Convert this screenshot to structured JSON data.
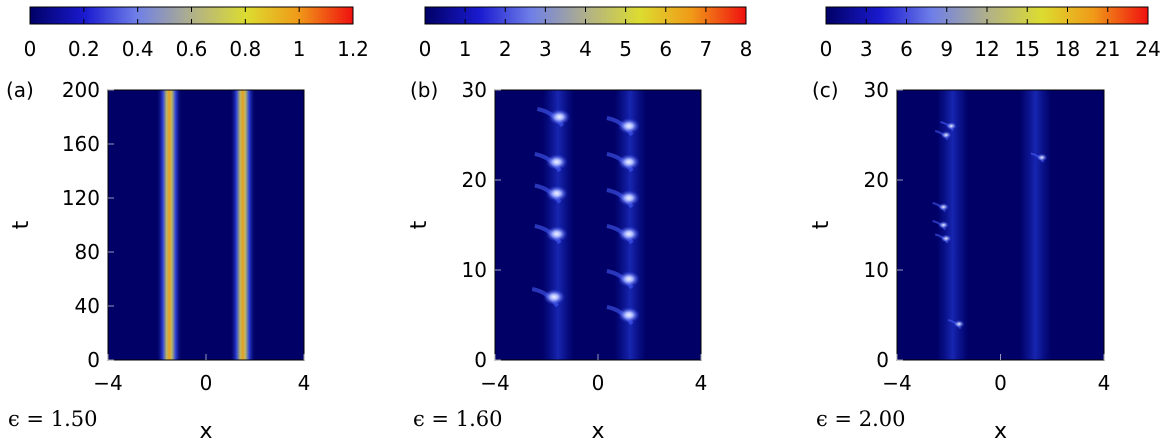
{
  "chart_data": [
    {
      "type": "heatmap",
      "panel_label": "(a)",
      "xlabel": "x",
      "ylabel": "t",
      "xlim": [
        -4,
        4
      ],
      "ylim": [
        0,
        200
      ],
      "xticks": [
        "−4",
        "0",
        "4"
      ],
      "yticks": [
        "0",
        "40",
        "80",
        "120",
        "160",
        "200"
      ],
      "colorbar": {
        "range": [
          0,
          1.2
        ],
        "ticks": [
          "0",
          "0.2",
          "0.4",
          "0.6",
          "0.8",
          "1",
          "1.2"
        ]
      },
      "annotation": "ϵ = 1.50",
      "features": [
        {
          "x": -1.5,
          "t_range": [
            0,
            200
          ],
          "peak_value": 1.0
        },
        {
          "x": 1.5,
          "t_range": [
            0,
            200
          ],
          "peak_value": 1.0
        }
      ]
    },
    {
      "type": "heatmap",
      "panel_label": "(b)",
      "xlabel": "x",
      "ylabel": "t",
      "xlim": [
        -4,
        4
      ],
      "ylim": [
        0,
        30
      ],
      "xticks": [
        "−4",
        "0",
        "4"
      ],
      "yticks": [
        "0",
        "10",
        "20",
        "30"
      ],
      "colorbar": {
        "range": [
          0,
          8
        ],
        "ticks": [
          "0",
          "1",
          "2",
          "3",
          "4",
          "5",
          "6",
          "7",
          "8"
        ]
      },
      "annotation": "ϵ = 1.60",
      "features": [
        {
          "x": -1.5,
          "t": 27,
          "value": 3.5
        },
        {
          "x": -1.6,
          "t": 22,
          "value": 3.5
        },
        {
          "x": -1.6,
          "t": 18.5,
          "value": 4
        },
        {
          "x": -1.6,
          "t": 14,
          "value": 6
        },
        {
          "x": -1.7,
          "t": 7,
          "value": 4
        },
        {
          "x": 1.2,
          "t": 26,
          "value": 3.5
        },
        {
          "x": 1.2,
          "t": 22,
          "value": 4
        },
        {
          "x": 1.2,
          "t": 18,
          "value": 4
        },
        {
          "x": 1.2,
          "t": 14,
          "value": 3.5
        },
        {
          "x": 1.2,
          "t": 9,
          "value": 3.5
        },
        {
          "x": 1.2,
          "t": 5,
          "value": 4
        }
      ]
    },
    {
      "type": "heatmap",
      "panel_label": "(c)",
      "xlabel": "x",
      "ylabel": "t",
      "xlim": [
        -4,
        4
      ],
      "ylim": [
        0,
        30
      ],
      "xticks": [
        "−4",
        "0",
        "4"
      ],
      "yticks": [
        "0",
        "10",
        "20",
        "30"
      ],
      "colorbar": {
        "range": [
          0,
          24
        ],
        "ticks": [
          "0",
          "3",
          "6",
          "9",
          "12",
          "15",
          "18",
          "21",
          "24"
        ]
      },
      "annotation": "ϵ = 2.00",
      "features": [
        {
          "x": -1.9,
          "t": 26,
          "value": 10
        },
        {
          "x": -2.1,
          "t": 25,
          "value": 10
        },
        {
          "x": 1.6,
          "t": 22.5,
          "value": 11
        },
        {
          "x": -2.2,
          "t": 17,
          "value": 8
        },
        {
          "x": -2.2,
          "t": 15,
          "value": 8
        },
        {
          "x": -2.1,
          "t": 13.5,
          "value": 9
        },
        {
          "x": -1.6,
          "t": 4,
          "value": 9
        }
      ]
    }
  ]
}
